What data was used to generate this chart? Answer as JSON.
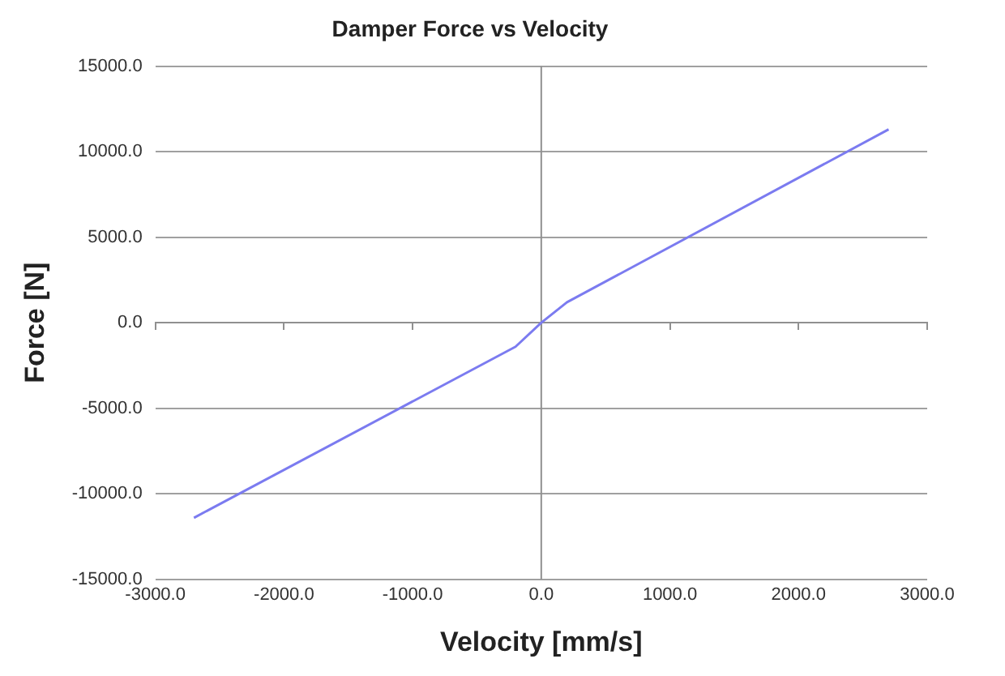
{
  "chart_data": {
    "type": "line",
    "title": "Damper Force vs Velocity",
    "xlabel": "Velocity [mm/s]",
    "ylabel": "Force [N]",
    "x": [
      -2700,
      -200,
      0,
      200,
      2700
    ],
    "series": [
      {
        "color": "#7b7bf0",
        "values": [
          -11400,
          -1400,
          0,
          1200,
          11300
        ]
      }
    ],
    "xlim": [
      -3000,
      3000
    ],
    "xticks": [
      {
        "value": -3000,
        "label": "-3000.0"
      },
      {
        "value": -2000,
        "label": "-2000.0"
      },
      {
        "value": -1000,
        "label": "-1000.0"
      },
      {
        "value": 0,
        "label": "0.0"
      },
      {
        "value": 1000,
        "label": "1000.0"
      },
      {
        "value": 2000,
        "label": "2000.0"
      },
      {
        "value": 3000,
        "label": "3000.0"
      }
    ],
    "ylim": [
      -15000,
      15000
    ],
    "yticks": [
      {
        "value": -15000,
        "label": "-15000.0"
      },
      {
        "value": -10000,
        "label": "-10000.0"
      },
      {
        "value": -5000,
        "label": "-5000.0"
      },
      {
        "value": 0,
        "label": "0.0"
      },
      {
        "value": 5000,
        "label": "5000.0"
      },
      {
        "value": 10000,
        "label": "10000.0"
      },
      {
        "value": 15000,
        "label": "15000.0"
      }
    ],
    "ref_lines": [
      {
        "axis": "x",
        "value": 0,
        "color": "#909090"
      }
    ],
    "grid": "y",
    "legend": false,
    "marker": "none",
    "line_style": "solid"
  }
}
